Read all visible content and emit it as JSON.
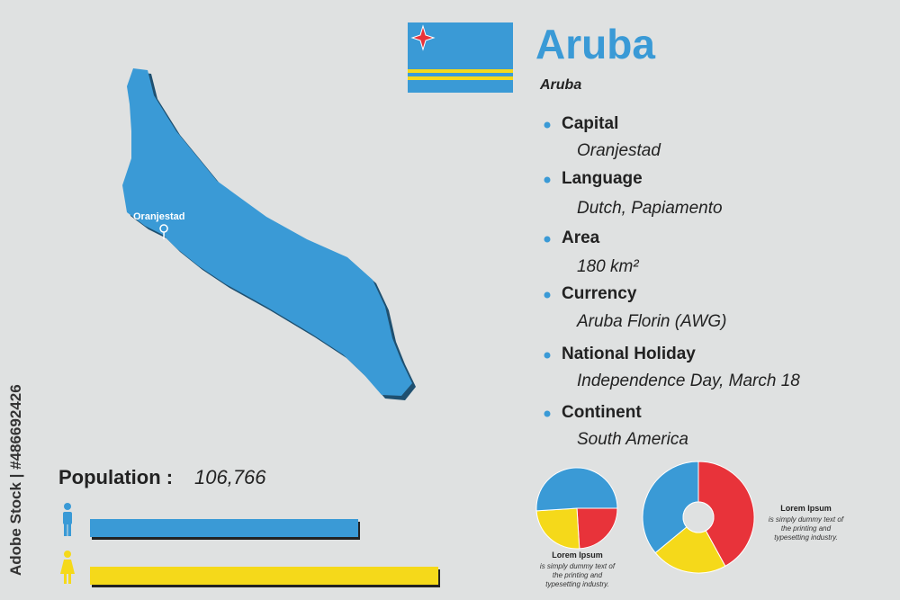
{
  "header": {
    "title": "Aruba",
    "subtitle": "Aruba"
  },
  "watermark": "Adobe Stock | #486692426",
  "map": {
    "city": "Oranjestad"
  },
  "facts": [
    {
      "label": "Capital",
      "value": "Oranjestad"
    },
    {
      "label": "Language",
      "value": "Dutch, Papiamento"
    },
    {
      "label": "Area",
      "value": "180 km²"
    },
    {
      "label": "Currency",
      "value": "Aruba Florin (AWG)"
    },
    {
      "label": "National Holiday",
      "value": "Independence Day, March 18"
    },
    {
      "label": "Continent",
      "value": "South America"
    }
  ],
  "population": {
    "label": "Population :",
    "value": "106,766"
  },
  "chart_data": [
    {
      "type": "bar",
      "orientation": "horizontal",
      "categories": [
        "male",
        "female"
      ],
      "values": [
        77,
        100
      ],
      "colors": [
        "#3a9ad6",
        "#f5d91a"
      ],
      "xlim": [
        0,
        100
      ]
    },
    {
      "type": "pie",
      "start_angle": 90,
      "values": [
        24,
        25,
        51
      ],
      "colors": [
        "#e8333a",
        "#f5d91a",
        "#3a9ad6"
      ],
      "title": "Lorem Ipsum",
      "subtitle": "is simply dummy text of the printing and typesetting industry."
    },
    {
      "type": "donut",
      "start_angle": 0,
      "values": [
        42,
        22,
        36
      ],
      "colors": [
        "#e8333a",
        "#f5d91a",
        "#3a9ad6"
      ],
      "title": "Lorem Ipsum",
      "subtitle": "is simply dummy text of the printing and typesetting industry."
    }
  ]
}
